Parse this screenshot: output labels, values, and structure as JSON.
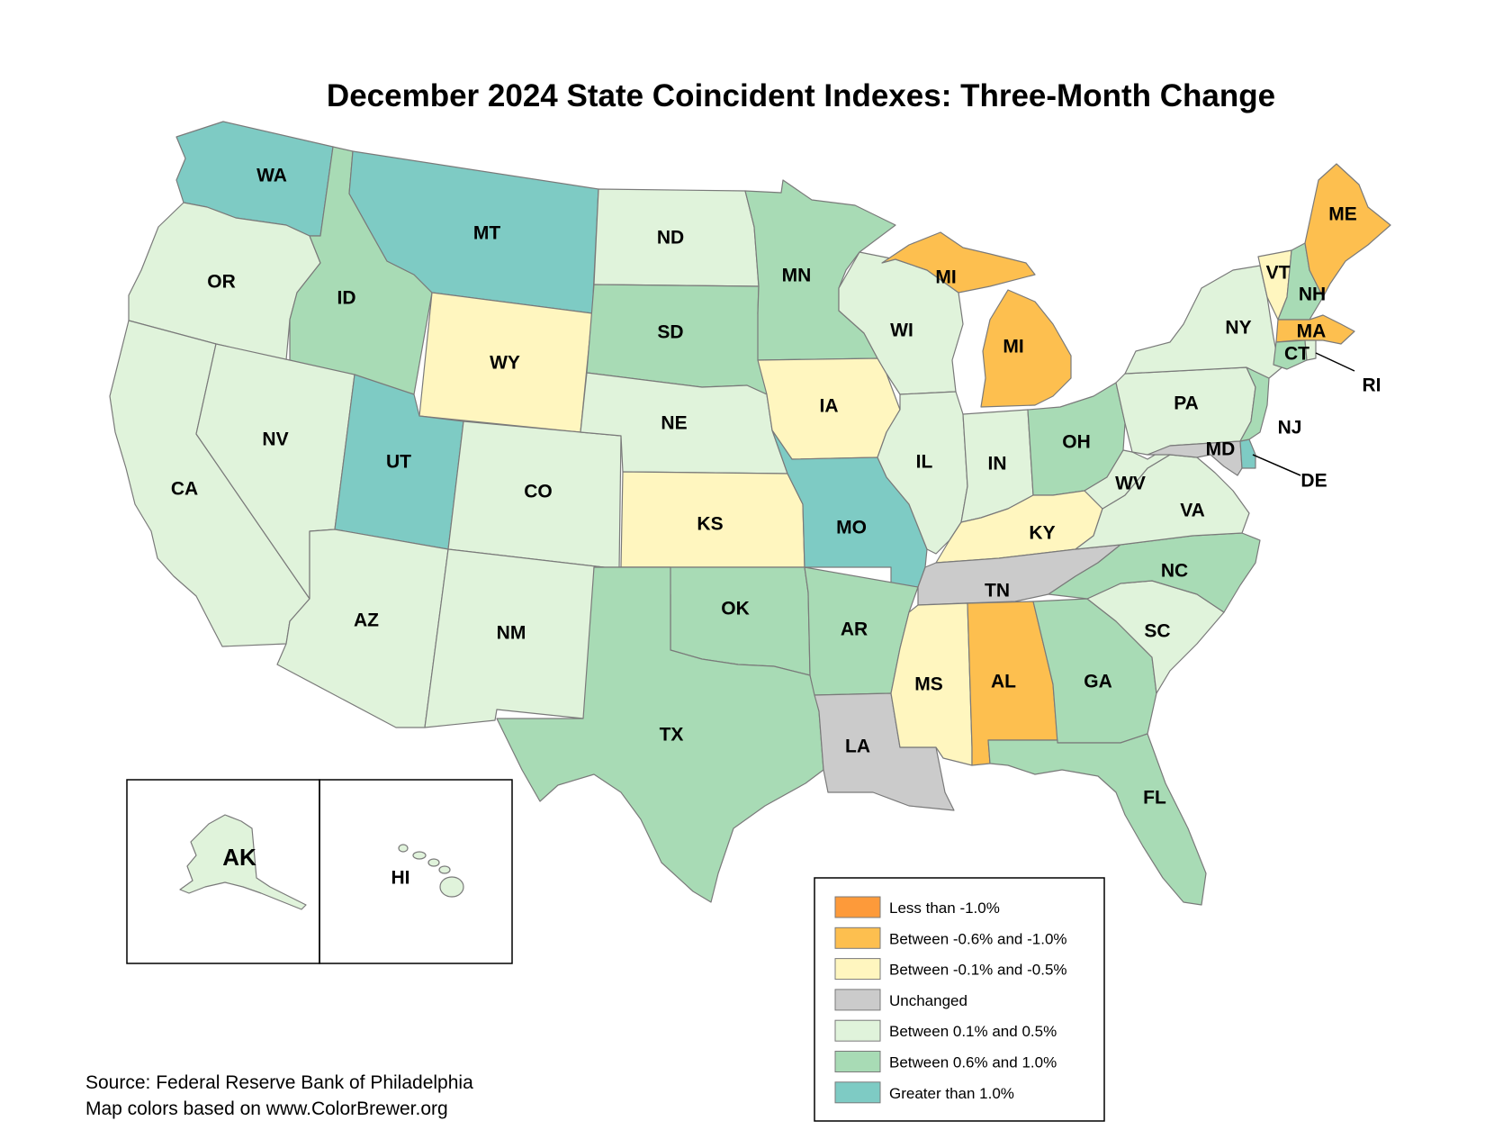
{
  "title": "December 2024 State Coincident Indexes: Three-Month Change",
  "colors": {
    "lt_neg1": "#fd9a3a",
    "neg06_neg1": "#fdbf4f",
    "neg01_neg05": "#fff6bf",
    "unchanged": "#cbcbcb",
    "p01_05": "#e0f3db",
    "p06_10": "#a8dbb5",
    "gt_1": "#7ecbc4"
  },
  "legend": [
    {
      "key": "lt_neg1",
      "label": "Less than -1.0%"
    },
    {
      "key": "neg06_neg1",
      "label": "Between -0.6% and -1.0%"
    },
    {
      "key": "neg01_neg05",
      "label": "Between -0.1% and -0.5%"
    },
    {
      "key": "unchanged",
      "label": "Unchanged"
    },
    {
      "key": "p01_05",
      "label": "Between 0.1% and 0.5%"
    },
    {
      "key": "p06_10",
      "label": "Between 0.6% and 1.0%"
    },
    {
      "key": "gt_1",
      "label": "Greater than 1.0%"
    }
  ],
  "states": {
    "WA": "gt_1",
    "OR": "p01_05",
    "CA": "p01_05",
    "ID": "p06_10",
    "NV": "p01_05",
    "MT": "gt_1",
    "WY": "neg01_neg05",
    "UT": "gt_1",
    "CO": "p01_05",
    "AZ": "p01_05",
    "NM": "p01_05",
    "ND": "p01_05",
    "SD": "p06_10",
    "NE": "p01_05",
    "KS": "neg01_neg05",
    "OK": "p06_10",
    "TX": "p06_10",
    "MN": "p06_10",
    "IA": "neg01_neg05",
    "MO": "gt_1",
    "AR": "p06_10",
    "LA": "unchanged",
    "WI": "p01_05",
    "IL": "p01_05",
    "MI": "neg06_neg1",
    "IN": "p01_05",
    "OH": "p06_10",
    "KY": "neg01_neg05",
    "TN": "unchanged",
    "MS": "neg01_neg05",
    "AL": "neg06_neg1",
    "GA": "p06_10",
    "FL": "p06_10",
    "SC": "p01_05",
    "NC": "p06_10",
    "VA": "p01_05",
    "WV": "p01_05",
    "PA": "p01_05",
    "NY": "p01_05",
    "NJ": "p06_10",
    "DE": "gt_1",
    "MD": "unchanged",
    "CT": "p06_10",
    "RI": "p01_05",
    "MA": "neg06_neg1",
    "VT": "neg01_neg05",
    "NH": "p06_10",
    "ME": "neg06_neg1",
    "AK": "p01_05",
    "HI": "p01_05"
  },
  "labels": {
    "WA": "WA",
    "OR": "OR",
    "CA": "CA",
    "ID": "ID",
    "NV": "NV",
    "MT": "MT",
    "WY": "WY",
    "UT": "UT",
    "CO": "CO",
    "AZ": "AZ",
    "NM": "NM",
    "ND": "ND",
    "SD": "SD",
    "NE": "NE",
    "KS": "KS",
    "OK": "OK",
    "TX": "TX",
    "MN": "MN",
    "IA": "IA",
    "MO": "MO",
    "AR": "AR",
    "LA": "LA",
    "WI": "WI",
    "IL": "IL",
    "MI_UP": "MI",
    "MI_LP": "MI",
    "IN": "IN",
    "OH": "OH",
    "KY": "KY",
    "TN": "TN",
    "MS": "MS",
    "AL": "AL",
    "GA": "GA",
    "FL": "FL",
    "SC": "SC",
    "NC": "NC",
    "VA": "VA",
    "WV": "WV",
    "PA": "PA",
    "NY": "NY",
    "NJ": "NJ",
    "DE": "DE",
    "MD": "MD",
    "CT": "CT",
    "RI": "RI",
    "MA": "MA",
    "VT": "VT",
    "NH": "NH",
    "ME": "ME",
    "AK": "AK",
    "HI": "HI"
  },
  "source_line1": "Source: Federal Reserve Bank of Philadelphia",
  "source_line2": "Map colors based on www.ColorBrewer.org"
}
